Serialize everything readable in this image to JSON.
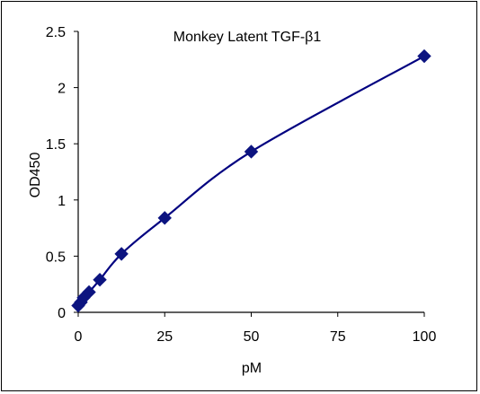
{
  "chart_data": {
    "type": "scatter",
    "title": "Monkey Latent TGF-β1",
    "xlabel": "pM",
    "ylabel": "OD450",
    "xlim": [
      0,
      100
    ],
    "ylim": [
      0,
      2.5
    ],
    "x_ticks": [
      "0",
      "25",
      "50",
      "75",
      "100"
    ],
    "y_ticks": [
      "0",
      "0.5",
      "1",
      "1.5",
      "2",
      "2.5"
    ],
    "grid": false,
    "series": [
      {
        "x": [
          0,
          0.78,
          1.56,
          3.125,
          6.25,
          12.5,
          25,
          50,
          100
        ],
        "y": [
          0.06,
          0.09,
          0.13,
          0.18,
          0.29,
          0.52,
          0.84,
          1.43,
          2.28
        ]
      }
    ],
    "colors": {
      "series": "#000080",
      "marker": "#0c1480",
      "axis": "#000000"
    }
  }
}
